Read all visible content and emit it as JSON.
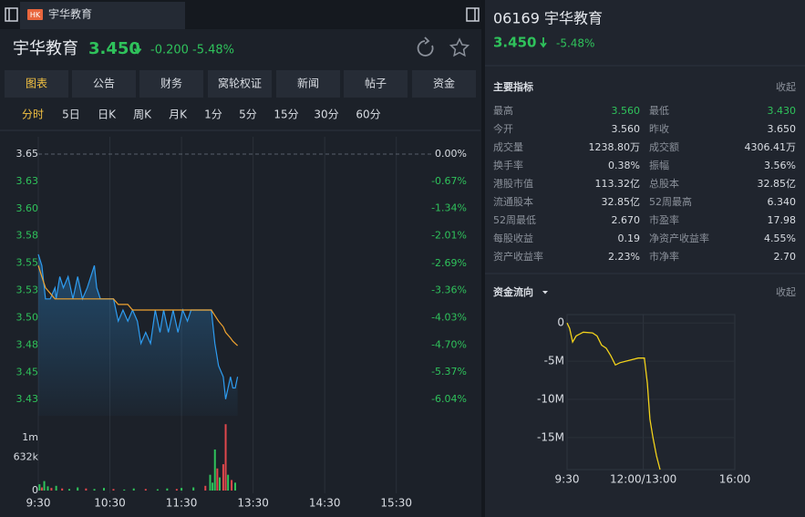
{
  "left_tab": {
    "badge": "HK",
    "title": "宇华教育"
  },
  "header": {
    "name": "宇华教育",
    "price": "3.450",
    "change": "-0.200",
    "change_pct": "-5.48%"
  },
  "tabs": [
    "图表",
    "公告",
    "财务",
    "窝轮权证",
    "新闻",
    "帖子",
    "资金"
  ],
  "active_tab": 0,
  "periods": [
    "分时",
    "5日",
    "日K",
    "周K",
    "月K",
    "1分",
    "5分",
    "15分",
    "30分",
    "60分"
  ],
  "active_period": 0,
  "price_chart": {
    "type": "line",
    "x": [
      0,
      3,
      6,
      10,
      14,
      15,
      18,
      21,
      25,
      29,
      33,
      37,
      41,
      44,
      47,
      49,
      52,
      60,
      63,
      67,
      71,
      75,
      79,
      83,
      86,
      90,
      94,
      98,
      102,
      105,
      109,
      113,
      117,
      121,
      125,
      128,
      136,
      140,
      145,
      148,
      151,
      155,
      157,
      161,
      163,
      165,
      167
    ],
    "series": [
      {
        "color": "#2e9cf0",
        "values": [
          3.56,
          3.55,
          3.52,
          3.52,
          3.53,
          3.52,
          3.54,
          3.53,
          3.54,
          3.52,
          3.54,
          3.52,
          3.53,
          3.54,
          3.55,
          3.53,
          3.52,
          3.52,
          3.52,
          3.5,
          3.51,
          3.5,
          3.51,
          3.5,
          3.48,
          3.49,
          3.48,
          3.51,
          3.49,
          3.51,
          3.49,
          3.51,
          3.49,
          3.51,
          3.5,
          3.51,
          3.51,
          3.51,
          3.51,
          3.48,
          3.46,
          3.45,
          3.43,
          3.45,
          3.44,
          3.44,
          3.45
        ]
      },
      {
        "color": "#f0a330",
        "values": [
          3.55,
          3.54,
          3.53,
          3.525,
          3.52,
          3.52,
          3.52,
          3.52,
          3.52,
          3.52,
          3.52,
          3.52,
          3.52,
          3.52,
          3.52,
          3.52,
          3.52,
          3.52,
          3.52,
          3.515,
          3.515,
          3.515,
          3.51,
          3.51,
          3.51,
          3.51,
          3.51,
          3.51,
          3.51,
          3.51,
          3.51,
          3.51,
          3.51,
          3.51,
          3.51,
          3.51,
          3.51,
          3.51,
          3.51,
          3.505,
          3.5,
          3.495,
          3.49,
          3.485,
          3.482,
          3.48,
          3.478
        ]
      }
    ],
    "xlim": [
      0,
      330
    ],
    "xticks": [
      {
        "value": 0,
        "label": "9:30"
      },
      {
        "value": 60,
        "label": "10:30"
      },
      {
        "value": 120,
        "label": "11:30"
      },
      {
        "value": 180,
        "label": "13:30"
      },
      {
        "value": 240,
        "label": "14:30"
      },
      {
        "value": 300,
        "label": "15:30"
      }
    ],
    "ylim": [
      3.4298,
      3.65
    ],
    "yticks": [
      {
        "value": 3.65,
        "label": "3.65"
      },
      {
        "value": 3.6255,
        "label": "3.63"
      },
      {
        "value": 3.601,
        "label": "3.60"
      },
      {
        "value": 3.5766,
        "label": "3.58"
      },
      {
        "value": 3.552,
        "label": "3.55"
      },
      {
        "value": 3.5277,
        "label": "3.53"
      },
      {
        "value": 3.503,
        "label": "3.50"
      },
      {
        "value": 3.4787,
        "label": "3.48"
      },
      {
        "value": 3.454,
        "label": "3.45"
      },
      {
        "value": 3.4298,
        "label": "3.43"
      }
    ],
    "y2lim": [
      -6.04,
      0
    ],
    "y2ticks": [
      {
        "value": 0,
        "label": "0.00%"
      },
      {
        "value": -0.67,
        "label": "-0.67%"
      },
      {
        "value": -1.34,
        "label": "-1.34%"
      },
      {
        "value": -2.01,
        "label": "-2.01%"
      },
      {
        "value": -2.69,
        "label": "-2.69%"
      },
      {
        "value": -3.36,
        "label": "-3.36%"
      },
      {
        "value": -4.03,
        "label": "-4.03%"
      },
      {
        "value": -4.7,
        "label": "-4.70%"
      },
      {
        "value": -5.37,
        "label": "-5.37%"
      },
      {
        "value": -6.04,
        "label": "-6.04%"
      }
    ],
    "volume": {
      "type": "bar",
      "x": [
        1,
        3,
        5,
        8,
        11,
        15,
        20,
        26,
        33,
        40,
        47,
        55,
        63,
        72,
        80,
        90,
        100,
        108,
        116,
        120,
        130,
        140,
        144,
        146,
        148,
        150,
        152,
        155,
        157,
        159,
        162,
        165
      ],
      "values": [
        120000,
        60000,
        180000,
        80000,
        50000,
        90000,
        40000,
        30000,
        60000,
        40000,
        30000,
        50000,
        30000,
        20000,
        40000,
        30000,
        25000,
        40000,
        30000,
        50000,
        60000,
        90000,
        300000,
        150000,
        780000,
        420000,
        250000,
        500000,
        1260000,
        300000,
        200000,
        150000
      ],
      "colors": [
        "#2fc25b",
        "#e0474c",
        "#2fc25b",
        "#2fc25b",
        "#e0474c",
        "#2fc25b",
        "#e0474c",
        "#2fc25b",
        "#2fc25b",
        "#e0474c",
        "#2fc25b",
        "#2fc25b",
        "#e0474c",
        "#2fc25b",
        "#2fc25b",
        "#e0474c",
        "#2fc25b",
        "#2fc25b",
        "#e0474c",
        "#2fc25b",
        "#2fc25b",
        "#e0474c",
        "#2fc25b",
        "#2fc25b",
        "#2fc25b",
        "#e0474c",
        "#2fc25b",
        "#e0474c",
        "#e0474c",
        "#2fc25b",
        "#e0474c",
        "#2fc25b"
      ],
      "ylim": [
        0,
        1264000
      ],
      "yticks": [
        {
          "value": 1000000,
          "label": "1m"
        },
        {
          "value": 632000,
          "label": "632k"
        },
        0
      ]
    }
  },
  "quote": {
    "code": "06169",
    "name": "宇华教育",
    "price": "3.450",
    "change_pct": "-5.48%"
  },
  "indicators": {
    "title": "主要指标",
    "collapse": "收起",
    "rows": [
      [
        "最高",
        "3.560",
        "最低",
        "3.430"
      ],
      [
        "今开",
        "3.560",
        "昨收",
        "3.650"
      ],
      [
        "成交量",
        "1238.80万",
        "成交额",
        "4306.41万"
      ],
      [
        "换手率",
        "0.38%",
        "振幅",
        "3.56%"
      ],
      [
        "港股市值",
        "113.32亿",
        "总股本",
        "32.85亿"
      ],
      [
        "流通股本",
        "32.85亿",
        "52周最高",
        "6.340"
      ],
      [
        "52周最低",
        "2.670",
        "市盈率",
        "17.98"
      ],
      [
        "每股收益",
        "0.19",
        "净资产收益率",
        "4.55%"
      ],
      [
        "资产收益率",
        "2.23%",
        "市净率",
        "2.70"
      ]
    ]
  },
  "fund_flow": {
    "title": "资金流向",
    "collapse": "收起",
    "chart": {
      "type": "line",
      "color": "#f2d21b",
      "x": [
        0,
        5,
        11,
        18,
        32,
        50,
        59,
        68,
        77,
        86,
        95,
        104,
        122,
        140,
        152,
        158,
        163,
        169,
        176,
        183
      ],
      "values": [
        0,
        -0.7,
        -2.5,
        -1.7,
        -1.2,
        -1.3,
        -1.7,
        -2.9,
        -3.3,
        -4.3,
        -5.5,
        -5.2,
        -4.9,
        -4.6,
        -4.6,
        -7.9,
        -12.6,
        -15,
        -17.4,
        -19.2
      ],
      "xlim": [
        0,
        330
      ],
      "xticks": [
        {
          "value": 0,
          "label": "9:30"
        },
        {
          "value": 150,
          "label": "12:00/13:00"
        },
        {
          "value": 330,
          "label": "16:00"
        }
      ],
      "ylim": [
        -19.2,
        1.1
      ],
      "yticks": [
        0,
        {
          "value": -5,
          "label": "-5M"
        },
        {
          "value": -10,
          "label": "-10M"
        },
        {
          "value": -15,
          "label": "-15M"
        }
      ]
    }
  }
}
